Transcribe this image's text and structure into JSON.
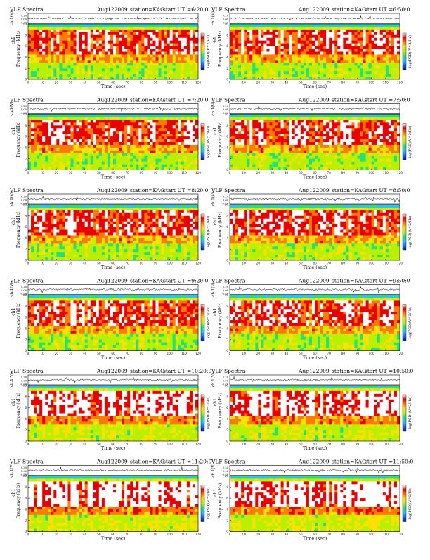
{
  "page_title": "VLF Spectra",
  "colors": {
    "colormap": [
      "#0a1a8c",
      "#1f66ff",
      "#1ec8ff",
      "#22e07a",
      "#b8f000",
      "#ffe000",
      "#ff7a00",
      "#e80000",
      "#ffffff"
    ],
    "trace": "#000000",
    "background": "#ffffff"
  },
  "chart_data": [
    {
      "type": "heatmap",
      "title": "VLF Spectra",
      "date": "Aug122009",
      "station": "station=KAG",
      "start_label": "start UT =6:20:0",
      "xlabel": "Time (sec)",
      "ylabel": "Frequency (kHz)",
      "ylabel_top": "ch1",
      "trace_label": "ch.1(V)",
      "zlabel": "log(PSD)(V^2/Hz)",
      "xlim": [
        0,
        120
      ],
      "ylim": [
        0,
        10
      ],
      "xticks": [
        "0",
        "10",
        "20",
        "30",
        "40",
        "50",
        "60",
        "70",
        "80",
        "90",
        "100",
        "110",
        "120"
      ],
      "yticks": [
        "0",
        "2",
        "4",
        "6",
        "8",
        "10"
      ],
      "trace_ticks": [
        "0.20",
        "0.00",
        "-0.20"
      ]
    },
    {
      "type": "heatmap",
      "title": "VLF Spectra",
      "date": "Aug122009",
      "station": "station=KAG",
      "start_label": "start UT =6:50:0",
      "xlabel": "Time (sec)",
      "ylabel": "Frequency (kHz)",
      "ylabel_top": "ch1",
      "trace_label": "ch.1(V)",
      "zlabel": "log(PSD)(V^2/Hz)",
      "xlim": [
        0,
        120
      ],
      "ylim": [
        0,
        10
      ],
      "xticks": [
        "0",
        "10",
        "20",
        "30",
        "40",
        "50",
        "60",
        "70",
        "80",
        "90",
        "100",
        "110",
        "120"
      ],
      "yticks": [
        "0",
        "2",
        "4",
        "6",
        "8",
        "10"
      ],
      "trace_ticks": [
        "0.20",
        "0.00",
        "-0.20"
      ]
    },
    {
      "type": "heatmap",
      "title": "VLF Spectra",
      "date": "Aug122009",
      "station": "station=KAG",
      "start_label": "start UT =7:20:0",
      "xlabel": "Time (sec)",
      "ylabel": "Frequency (kHz)",
      "ylabel_top": "ch1",
      "trace_label": "ch.1(V)",
      "zlabel": "log(PSD)(V^2/Hz)",
      "xlim": [
        0,
        120
      ],
      "ylim": [
        0,
        10
      ],
      "xticks": [
        "0",
        "10",
        "20",
        "30",
        "40",
        "50",
        "60",
        "70",
        "80",
        "90",
        "100",
        "110",
        "120"
      ],
      "yticks": [
        "0",
        "2",
        "4",
        "6",
        "8",
        "10"
      ],
      "trace_ticks": [
        "0.20",
        "0.00",
        "-0.20"
      ]
    },
    {
      "type": "heatmap",
      "title": "VLF Spectra",
      "date": "Aug122009",
      "station": "station=KAG",
      "start_label": "start UT =7:50:0",
      "xlabel": "Time (sec)",
      "ylabel": "Frequency (kHz)",
      "ylabel_top": "ch1",
      "trace_label": "ch.1(V)",
      "zlabel": "log(PSD)(V^2/Hz)",
      "xlim": [
        0,
        120
      ],
      "ylim": [
        0,
        10
      ],
      "xticks": [
        "0",
        "10",
        "20",
        "30",
        "40",
        "50",
        "60",
        "70",
        "80",
        "90",
        "100",
        "110",
        "120"
      ],
      "yticks": [
        "0",
        "2",
        "4",
        "6",
        "8",
        "10"
      ],
      "trace_ticks": [
        "0.20",
        "0.00",
        "-0.20"
      ]
    },
    {
      "type": "heatmap",
      "title": "VLF Spectra",
      "date": "Aug122009",
      "station": "station=KAG",
      "start_label": "start UT =8:20:0",
      "xlabel": "Time (sec)",
      "ylabel": "Frequency (kHz)",
      "ylabel_top": "ch1",
      "trace_label": "ch.1(V)",
      "zlabel": "log(PSD)(V^2/Hz)",
      "xlim": [
        0,
        120
      ],
      "ylim": [
        0,
        10
      ],
      "xticks": [
        "0",
        "10",
        "20",
        "30",
        "40",
        "50",
        "60",
        "70",
        "80",
        "90",
        "100",
        "110",
        "120"
      ],
      "yticks": [
        "0",
        "2",
        "4",
        "6",
        "8",
        "10"
      ],
      "trace_ticks": [
        "0.20",
        "0.00",
        "-0.20"
      ]
    },
    {
      "type": "heatmap",
      "title": "VLF Spectra",
      "date": "Aug122009",
      "station": "station=KAG",
      "start_label": "start UT =8:50:0",
      "xlabel": "Time (sec)",
      "ylabel": "Frequency (kHz)",
      "ylabel_top": "ch1",
      "trace_label": "ch.1(V)",
      "zlabel": "log(PSD)(V^2/Hz)",
      "xlim": [
        0,
        120
      ],
      "ylim": [
        0,
        10
      ],
      "xticks": [
        "0",
        "10",
        "20",
        "30",
        "40",
        "50",
        "60",
        "70",
        "80",
        "90",
        "100",
        "110",
        "120"
      ],
      "yticks": [
        "0",
        "2",
        "4",
        "6",
        "8",
        "10"
      ],
      "trace_ticks": [
        "0.20",
        "0.00",
        "-0.20"
      ]
    },
    {
      "type": "heatmap",
      "title": "VLF Spectra",
      "date": "Aug122009",
      "station": "station=KAG",
      "start_label": "start UT =9:20:0",
      "xlabel": "Time (sec)",
      "ylabel": "Frequency (kHz)",
      "ylabel_top": "ch1",
      "trace_label": "ch.1(V)",
      "zlabel": "log(PSD)(V^2/Hz)",
      "xlim": [
        0,
        120
      ],
      "ylim": [
        0,
        10
      ],
      "xticks": [
        "0",
        "10",
        "20",
        "30",
        "40",
        "50",
        "60",
        "70",
        "80",
        "90",
        "100",
        "110",
        "120"
      ],
      "yticks": [
        "0",
        "2",
        "4",
        "6",
        "8",
        "10"
      ],
      "trace_ticks": [
        "0.20",
        "0.00",
        "-0.20"
      ]
    },
    {
      "type": "heatmap",
      "title": "VLF Spectra",
      "date": "Aug122009",
      "station": "station=KAG",
      "start_label": "start UT =9:50:0",
      "xlabel": "Time (sec)",
      "ylabel": "Frequency (kHz)",
      "ylabel_top": "ch1",
      "trace_label": "ch.1(V)",
      "zlabel": "log(PSD)(V^2/Hz)",
      "xlim": [
        0,
        120
      ],
      "ylim": [
        0,
        10
      ],
      "xticks": [
        "0",
        "10",
        "20",
        "30",
        "40",
        "50",
        "60",
        "70",
        "80",
        "90",
        "100",
        "110",
        "120"
      ],
      "yticks": [
        "0",
        "2",
        "4",
        "6",
        "8",
        "10"
      ],
      "trace_ticks": [
        "0.20",
        "0.00",
        "-0.20"
      ]
    },
    {
      "type": "heatmap",
      "title": "VLF Spectra",
      "date": "Aug122009",
      "station": "station=KAG",
      "start_label": "start UT =10:20:0",
      "xlabel": "Time (sec)",
      "ylabel": "Frequency (kHz)",
      "ylabel_top": "ch1",
      "trace_label": "ch.1(V)",
      "zlabel": "log(PSD)(V^2/Hz)",
      "xlim": [
        0,
        120
      ],
      "ylim": [
        0,
        10
      ],
      "xticks": [
        "0",
        "10",
        "20",
        "30",
        "40",
        "50",
        "60",
        "70",
        "80",
        "90",
        "100",
        "110",
        "120"
      ],
      "yticks": [
        "0",
        "2",
        "4",
        "6",
        "8",
        "10"
      ],
      "trace_ticks": [
        "0.20",
        "0.00",
        "-0.20"
      ]
    },
    {
      "type": "heatmap",
      "title": "VLF Spectra",
      "date": "Aug122009",
      "station": "station=KAG",
      "start_label": "start UT =10:50:0",
      "xlabel": "Time (sec)",
      "ylabel": "Frequency (kHz)",
      "ylabel_top": "ch1",
      "trace_label": "ch.1(V)",
      "zlabel": "log(PSD)(V^2/Hz)",
      "xlim": [
        0,
        120
      ],
      "ylim": [
        0,
        10
      ],
      "xticks": [
        "0",
        "10",
        "20",
        "30",
        "40",
        "50",
        "60",
        "70",
        "80",
        "90",
        "100",
        "110",
        "120"
      ],
      "yticks": [
        "0",
        "2",
        "4",
        "6",
        "8",
        "10"
      ],
      "trace_ticks": [
        "0.20",
        "0.00",
        "-0.20"
      ]
    },
    {
      "type": "heatmap",
      "title": "VLF Spectra",
      "date": "Aug122009",
      "station": "station=KAG",
      "start_label": "start UT =11:20:0",
      "xlabel": "Time (sec)",
      "ylabel": "Frequency (kHz)",
      "ylabel_top": "ch1",
      "trace_label": "ch.1(V)",
      "zlabel": "log(PSD)(V^2/Hz)",
      "xlim": [
        0,
        120
      ],
      "ylim": [
        0,
        10
      ],
      "xticks": [
        "0",
        "10",
        "20",
        "30",
        "40",
        "50",
        "60",
        "70",
        "80",
        "90",
        "100",
        "110",
        "120"
      ],
      "yticks": [
        "0",
        "2",
        "4",
        "6",
        "8",
        "10"
      ],
      "trace_ticks": [
        "0.20",
        "0.00",
        "-0.20"
      ]
    },
    {
      "type": "heatmap",
      "title": "VLF Spectra",
      "date": "Aug122009",
      "station": "station=KAG",
      "start_label": "start UT =11:50:0",
      "xlabel": "Time (sec)",
      "ylabel": "Frequency (kHz)",
      "ylabel_top": "ch1",
      "trace_label": "ch.1(V)",
      "zlabel": "log(PSD)(V^2/Hz)",
      "xlim": [
        0,
        120
      ],
      "ylim": [
        0,
        10
      ],
      "xticks": [
        "0",
        "10",
        "20",
        "30",
        "40",
        "50",
        "60",
        "70",
        "80",
        "90",
        "100",
        "110",
        "120"
      ],
      "yticks": [
        "0",
        "2",
        "4",
        "6",
        "8",
        "10"
      ],
      "trace_ticks": [
        "0.20",
        "0.00",
        "-0.20"
      ]
    }
  ]
}
